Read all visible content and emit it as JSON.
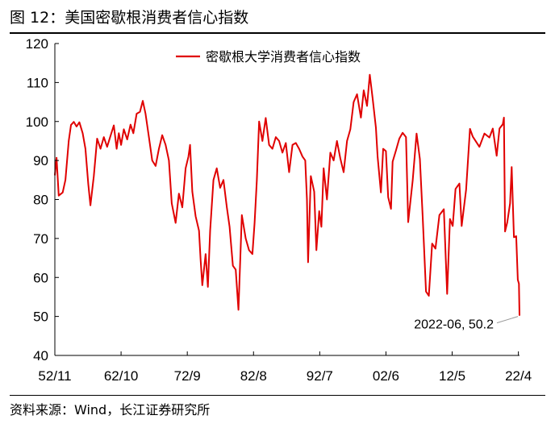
{
  "header": {
    "title": "图 12：美国密歇根消费者信心指数"
  },
  "footer": {
    "source": "资料来源：Wind，长江证券研究所"
  },
  "chart_data": {
    "type": "line",
    "title": "",
    "xlabel": "",
    "ylabel": "",
    "ylim": [
      40,
      120
    ],
    "yticks": [
      40,
      50,
      60,
      70,
      80,
      90,
      100,
      110,
      120
    ],
    "x_range": [
      "1952-11",
      "2022-06"
    ],
    "xticks": [
      {
        "label": "52/11",
        "date": "1952-11"
      },
      {
        "label": "62/10",
        "date": "1962-10"
      },
      {
        "label": "72/9",
        "date": "1972-09"
      },
      {
        "label": "82/8",
        "date": "1982-08"
      },
      {
        "label": "92/7",
        "date": "1992-07"
      },
      {
        "label": "02/6",
        "date": "2002-06"
      },
      {
        "label": "12/5",
        "date": "2012-05"
      },
      {
        "label": "22/4",
        "date": "2022-04"
      }
    ],
    "grid": false,
    "legend": {
      "position": "top-center"
    },
    "colors": {
      "series": "#e00000",
      "axis": "#000000",
      "annotation_line": "#999999"
    },
    "series": [
      {
        "name": "密歇根大学消费者信心指数",
        "points": [
          [
            "1952-11",
            86.2
          ],
          [
            "1953-02",
            90.7
          ],
          [
            "1953-06",
            81.0
          ],
          [
            "1954-01",
            81.8
          ],
          [
            "1954-06",
            85.0
          ],
          [
            "1954-12",
            95.0
          ],
          [
            "1955-04",
            99.1
          ],
          [
            "1955-09",
            99.9
          ],
          [
            "1956-02",
            98.7
          ],
          [
            "1956-07",
            99.8
          ],
          [
            "1957-01",
            97.0
          ],
          [
            "1957-06",
            93.0
          ],
          [
            "1957-11",
            84.0
          ],
          [
            "1958-03",
            78.5
          ],
          [
            "1958-09",
            86.0
          ],
          [
            "1959-03",
            95.6
          ],
          [
            "1959-09",
            93.0
          ],
          [
            "1960-03",
            96.0
          ],
          [
            "1960-09",
            93.5
          ],
          [
            "1961-03",
            96.3
          ],
          [
            "1961-09",
            99.0
          ],
          [
            "1962-02",
            93.0
          ],
          [
            "1962-06",
            97.0
          ],
          [
            "1962-10",
            94.0
          ],
          [
            "1963-03",
            98.0
          ],
          [
            "1963-09",
            95.4
          ],
          [
            "1964-03",
            99.2
          ],
          [
            "1964-08",
            97.0
          ],
          [
            "1965-02",
            102.0
          ],
          [
            "1965-08",
            102.5
          ],
          [
            "1966-01",
            105.3
          ],
          [
            "1966-06",
            102.0
          ],
          [
            "1966-12",
            96.0
          ],
          [
            "1967-06",
            90.0
          ],
          [
            "1967-12",
            88.6
          ],
          [
            "1968-06",
            93.0
          ],
          [
            "1968-12",
            96.5
          ],
          [
            "1969-06",
            94.0
          ],
          [
            "1969-12",
            90.0
          ],
          [
            "1970-05",
            79.0
          ],
          [
            "1970-12",
            74.0
          ],
          [
            "1971-06",
            81.5
          ],
          [
            "1971-12",
            78.0
          ],
          [
            "1972-06",
            88.0
          ],
          [
            "1972-11",
            91.0
          ],
          [
            "1973-02",
            94.0
          ],
          [
            "1973-06",
            82.0
          ],
          [
            "1973-12",
            75.7
          ],
          [
            "1974-06",
            72.0
          ],
          [
            "1974-09",
            64.5
          ],
          [
            "1974-12",
            58.0
          ],
          [
            "1975-06",
            66.0
          ],
          [
            "1975-10",
            57.6
          ],
          [
            "1976-02",
            72.0
          ],
          [
            "1976-08",
            85.0
          ],
          [
            "1977-02",
            88.0
          ],
          [
            "1977-08",
            83.0
          ],
          [
            "1978-02",
            85.0
          ],
          [
            "1978-08",
            78.0
          ],
          [
            "1979-01",
            73.0
          ],
          [
            "1979-07",
            63.0
          ],
          [
            "1979-12",
            62.0
          ],
          [
            "1980-05",
            51.7
          ],
          [
            "1980-11",
            76.0
          ],
          [
            "1981-06",
            70.0
          ],
          [
            "1981-12",
            67.0
          ],
          [
            "1982-06",
            66.0
          ],
          [
            "1982-10",
            74.0
          ],
          [
            "1983-02",
            85.0
          ],
          [
            "1983-06",
            100.0
          ],
          [
            "1983-12",
            95.0
          ],
          [
            "1984-06",
            100.9
          ],
          [
            "1984-12",
            94.0
          ],
          [
            "1985-06",
            93.0
          ],
          [
            "1985-12",
            96.0
          ],
          [
            "1986-06",
            95.0
          ],
          [
            "1986-12",
            92.0
          ],
          [
            "1987-06",
            94.5
          ],
          [
            "1987-12",
            87.0
          ],
          [
            "1988-06",
            94.0
          ],
          [
            "1988-12",
            94.5
          ],
          [
            "1989-06",
            93.0
          ],
          [
            "1989-12",
            91.0
          ],
          [
            "1990-05",
            90.0
          ],
          [
            "1990-08",
            80.0
          ],
          [
            "1990-10",
            63.9
          ],
          [
            "1991-03",
            86.0
          ],
          [
            "1991-09",
            82.0
          ],
          [
            "1992-01",
            67.0
          ],
          [
            "1992-06",
            77.0
          ],
          [
            "1992-10",
            73.0
          ],
          [
            "1993-02",
            88.0
          ],
          [
            "1993-08",
            80.0
          ],
          [
            "1994-02",
            92.0
          ],
          [
            "1994-08",
            90.0
          ],
          [
            "1995-02",
            95.0
          ],
          [
            "1995-08",
            90.5
          ],
          [
            "1996-02",
            87.0
          ],
          [
            "1996-08",
            95.0
          ],
          [
            "1997-02",
            98.0
          ],
          [
            "1997-08",
            105.0
          ],
          [
            "1998-02",
            107.0
          ],
          [
            "1998-09",
            101.0
          ],
          [
            "1999-02",
            108.0
          ],
          [
            "1999-08",
            104.0
          ],
          [
            "2000-01",
            112.0
          ],
          [
            "2000-06",
            106.0
          ],
          [
            "2000-12",
            98.4
          ],
          [
            "2001-03",
            91.0
          ],
          [
            "2001-09",
            81.8
          ],
          [
            "2002-01",
            93.0
          ],
          [
            "2002-06",
            92.4
          ],
          [
            "2002-10",
            80.6
          ],
          [
            "2003-03",
            77.6
          ],
          [
            "2003-06",
            89.7
          ],
          [
            "2003-12",
            92.6
          ],
          [
            "2004-06",
            95.6
          ],
          [
            "2004-12",
            97.1
          ],
          [
            "2005-06",
            96.0
          ],
          [
            "2005-10",
            74.2
          ],
          [
            "2006-06",
            84.9
          ],
          [
            "2007-01",
            96.9
          ],
          [
            "2007-07",
            90.4
          ],
          [
            "2007-12",
            75.5
          ],
          [
            "2008-06",
            56.4
          ],
          [
            "2008-11",
            55.3
          ],
          [
            "2009-05",
            68.7
          ],
          [
            "2009-11",
            67.4
          ],
          [
            "2010-06",
            76.0
          ],
          [
            "2011-02",
            77.5
          ],
          [
            "2011-08",
            55.8
          ],
          [
            "2012-01",
            75.0
          ],
          [
            "2012-06",
            73.2
          ],
          [
            "2012-11",
            82.7
          ],
          [
            "2013-06",
            84.1
          ],
          [
            "2013-10",
            73.2
          ],
          [
            "2014-06",
            82.5
          ],
          [
            "2015-01",
            98.1
          ],
          [
            "2015-06",
            96.1
          ],
          [
            "2016-06",
            93.5
          ],
          [
            "2017-03",
            96.9
          ],
          [
            "2017-12",
            95.9
          ],
          [
            "2018-06",
            98.2
          ],
          [
            "2019-01",
            91.2
          ],
          [
            "2019-06",
            98.2
          ],
          [
            "2019-12",
            99.3
          ],
          [
            "2020-02",
            101.0
          ],
          [
            "2020-04",
            71.8
          ],
          [
            "2020-08",
            74.1
          ],
          [
            "2021-01",
            79.0
          ],
          [
            "2021-04",
            88.3
          ],
          [
            "2021-08",
            70.3
          ],
          [
            "2021-12",
            70.6
          ],
          [
            "2022-03",
            59.4
          ],
          [
            "2022-05",
            58.4
          ],
          [
            "2022-06",
            50.2
          ]
        ]
      }
    ],
    "annotation": {
      "text": "2022-06, 50.2",
      "date": "2022-06",
      "value": 50.2
    }
  }
}
